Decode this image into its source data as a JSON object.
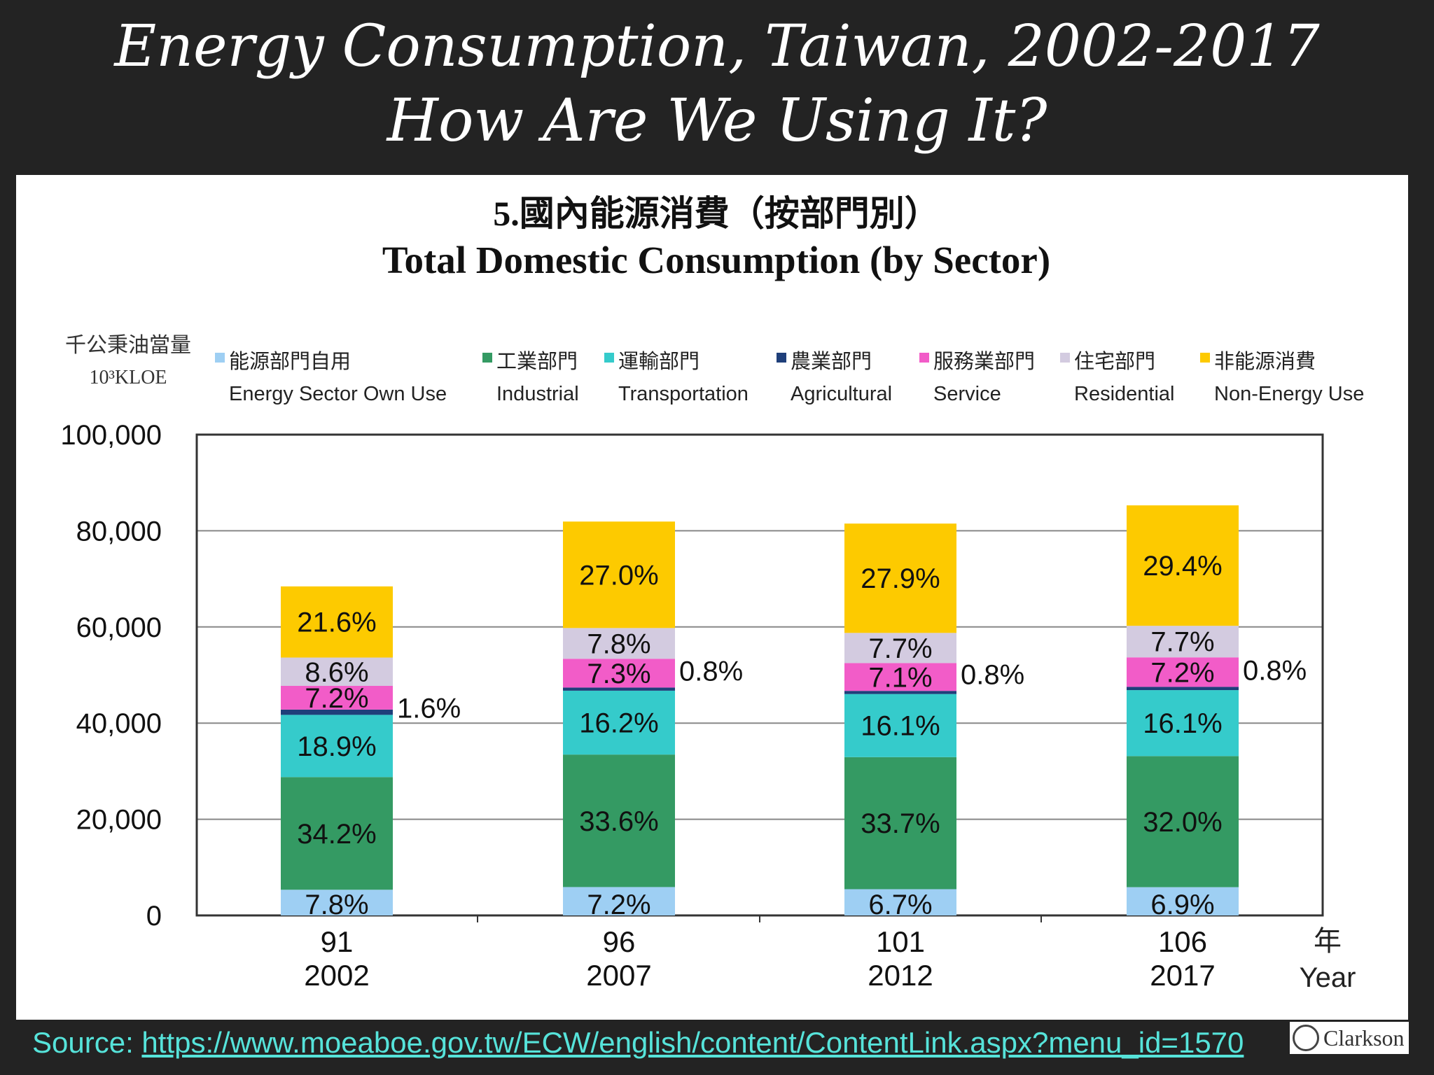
{
  "slide": {
    "title_line1": "Energy Consumption, Taiwan, 2002-2017",
    "title_line2": "How Are We Using It?",
    "source_label": "Source: ",
    "source_url": "https://www.moeaboe.gov.tw/ECW/english/content/ContentLink.aspx?menu_id=1570",
    "logo_text": "Clarkson"
  },
  "chart_data": {
    "type": "bar",
    "stacked": true,
    "title": "5.國內能源消費（按部門別）",
    "subtitle": "Total Domestic Consumption (by Sector)",
    "ylabel": "千公秉油當量",
    "ylabel_unit": "10³KLOE",
    "xlabel": "年",
    "xlabel_en": "Year",
    "ylim": [
      0,
      100000
    ],
    "yticks": [
      0,
      20000,
      40000,
      60000,
      80000,
      100000
    ],
    "ytick_labels": [
      "0",
      "20,000",
      "40,000",
      "60,000",
      "80,000",
      "100,000"
    ],
    "grid": true,
    "legend_position": "top",
    "categories": [
      "91\n2002",
      "96\n2007",
      "101\n2012",
      "106\n2017"
    ],
    "category_roc": [
      "91",
      "96",
      "101",
      "106"
    ],
    "category_year": [
      "2002",
      "2007",
      "2012",
      "2017"
    ],
    "totals": [
      68500,
      82000,
      81500,
      85200
    ],
    "series": [
      {
        "name": "Energy Sector Own Use",
        "name_zh": "能源部門自用",
        "color": "#9ecff3",
        "shares": [
          7.8,
          7.2,
          6.7,
          6.9
        ],
        "labels": [
          "7.8%",
          "7.2%",
          "6.7%",
          "6.9%"
        ]
      },
      {
        "name": "Industrial",
        "name_zh": "工業部門",
        "color": "#349a63",
        "shares": [
          34.2,
          33.6,
          33.7,
          32.0
        ],
        "labels": [
          "34.2%",
          "33.6%",
          "33.7%",
          "32.0%"
        ]
      },
      {
        "name": "Transportation",
        "name_zh": "運輸部門",
        "color": "#35cbcb",
        "shares": [
          18.9,
          16.2,
          16.1,
          16.1
        ],
        "labels": [
          "18.9%",
          "16.2%",
          "16.1%",
          "16.1%"
        ]
      },
      {
        "name": "Agricultural",
        "name_zh": "農業部門",
        "color": "#1f3f7a",
        "shares": [
          1.6,
          0.8,
          0.8,
          0.8
        ],
        "labels": [
          "1.6%",
          "0.8%",
          "0.8%",
          "0.8%"
        ]
      },
      {
        "name": "Service",
        "name_zh": "服務業部門",
        "color": "#f25cc8",
        "shares": [
          7.2,
          7.3,
          7.1,
          7.2
        ],
        "labels": [
          "7.2%",
          "7.3%",
          "7.1%",
          "7.2%"
        ]
      },
      {
        "name": "Residential",
        "name_zh": "住宅部門",
        "color": "#d3cbe0",
        "shares": [
          8.6,
          7.8,
          7.7,
          7.7
        ],
        "labels": [
          "8.6%",
          "7.8%",
          "7.7%",
          "7.7%"
        ]
      },
      {
        "name": "Non-Energy Use",
        "name_zh": "非能源消費",
        "color": "#fdca00",
        "shares": [
          21.6,
          27.0,
          27.9,
          29.4
        ],
        "labels": [
          "21.6%",
          "27.0%",
          "27.9%",
          "29.4%"
        ]
      }
    ]
  }
}
